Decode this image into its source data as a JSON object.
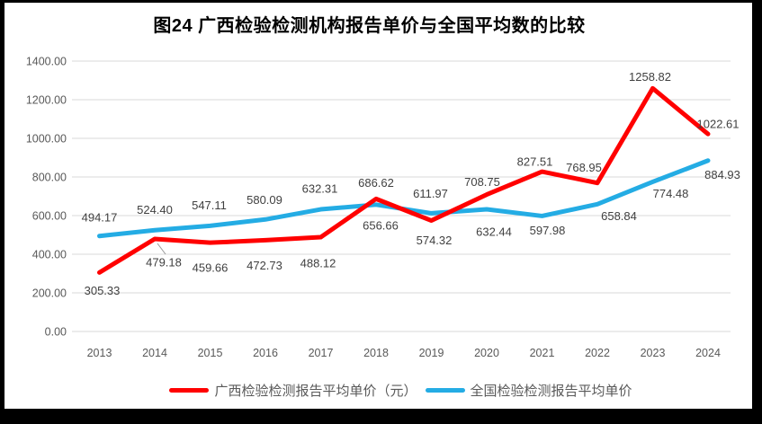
{
  "title": "图24  广西检验检测机构报告单价与全国平均数的比较",
  "chart_data": {
    "type": "line",
    "x": [
      "2013",
      "2014",
      "2015",
      "2016",
      "2017",
      "2018",
      "2019",
      "2020",
      "2021",
      "2022",
      "2023",
      "2024"
    ],
    "series": [
      {
        "name": "广西检验检测报告平均单价（元）",
        "color": "#FF0000",
        "values": [
          305.33,
          479.18,
          459.66,
          472.73,
          488.12,
          686.62,
          574.32,
          708.75,
          827.51,
          768.95,
          1258.82,
          1022.61
        ]
      },
      {
        "name": "全国检验检测报告平均单价",
        "color": "#24ACE4",
        "values": [
          494.17,
          524.4,
          547.11,
          580.09,
          632.31,
          656.66,
          611.97,
          632.44,
          597.98,
          658.84,
          774.48,
          884.93
        ]
      }
    ],
    "ylim": [
      0,
      1400
    ],
    "ytick_step": 200,
    "ytick_labels": [
      "0.00",
      "200.00",
      "400.00",
      "600.00",
      "800.00",
      "1000.00",
      "1200.00",
      "1400.00"
    ],
    "grid": true,
    "legend_position": "bottom",
    "colors": {
      "grid": "#D9D9D9",
      "axis_text": "#595959",
      "data_label": "#404040",
      "title": "#000000",
      "leader_line": "#999999",
      "background": "#FFFFFF",
      "frame": "#000000"
    }
  }
}
